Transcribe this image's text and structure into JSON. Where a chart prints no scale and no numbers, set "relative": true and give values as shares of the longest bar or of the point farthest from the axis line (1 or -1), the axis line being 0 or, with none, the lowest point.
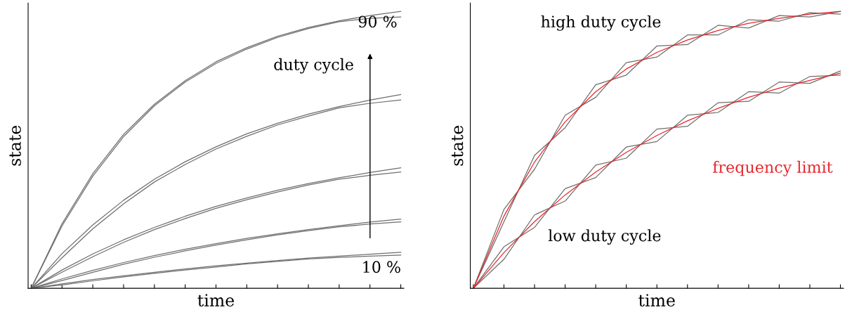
{
  "chart_data": [
    {
      "type": "line",
      "relative": true,
      "xlabel": "time",
      "ylabel": "state",
      "annotations": [
        "90 %",
        "duty cycle",
        "10 %"
      ],
      "categories": [
        null,
        null,
        null,
        null,
        null,
        null,
        null,
        null,
        null,
        null,
        null,
        null,
        null
      ],
      "series": [
        {
          "color": "#6e6e6e",
          "values": [
            0,
            0.233,
            0.414,
            0.556,
            0.665,
            0.75,
            0.818,
            0.869,
            0.91,
            0.942,
            0.966,
            0.985,
            1
          ]
        },
        {
          "color": "#6e6e6e",
          "values": [
            0,
            0.225,
            0.405,
            0.548,
            0.659,
            0.745,
            0.812,
            0.864,
            0.906,
            0.938,
            0.963,
            0.975,
            0.98
          ]
        },
        {
          "color": "#6e6e6e",
          "values": [
            0,
            0.125,
            0.229,
            0.318,
            0.394,
            0.457,
            0.511,
            0.558,
            0.596,
            0.629,
            0.656,
            0.68,
            0.7
          ]
        },
        {
          "color": "#6e6e6e",
          "values": [
            0,
            0.11,
            0.215,
            0.305,
            0.384,
            0.447,
            0.503,
            0.549,
            0.59,
            0.622,
            0.652,
            0.668,
            0.68
          ]
        },
        {
          "color": "#6e6e6e",
          "values": [
            0,
            0.066,
            0.124,
            0.175,
            0.22,
            0.26,
            0.296,
            0.326,
            0.354,
            0.378,
            0.399,
            0.418,
            0.435
          ]
        },
        {
          "color": "#6e6e6e",
          "values": [
            0,
            0.058,
            0.114,
            0.166,
            0.212,
            0.252,
            0.289,
            0.32,
            0.348,
            0.373,
            0.394,
            0.408,
            0.42
          ]
        },
        {
          "color": "#6e6e6e",
          "values": [
            0,
            0.034,
            0.065,
            0.093,
            0.118,
            0.141,
            0.161,
            0.18,
            0.197,
            0.212,
            0.226,
            0.239,
            0.25
          ]
        },
        {
          "color": "#6e6e6e",
          "values": [
            0,
            0.028,
            0.058,
            0.087,
            0.112,
            0.135,
            0.156,
            0.175,
            0.193,
            0.208,
            0.222,
            0.232,
            0.24
          ]
        },
        {
          "color": "#6e6e6e",
          "values": [
            0,
            0.016,
            0.032,
            0.045,
            0.058,
            0.07,
            0.081,
            0.091,
            0.1,
            0.109,
            0.116,
            0.123,
            0.13
          ]
        },
        {
          "color": "#6e6e6e",
          "values": [
            0,
            0.012,
            0.027,
            0.041,
            0.054,
            0.066,
            0.077,
            0.088,
            0.097,
            0.106,
            0.112,
            0.116,
            0.12
          ]
        }
      ]
    },
    {
      "type": "line",
      "relative": true,
      "xlabel": "time",
      "ylabel": "state",
      "annotations": [
        "high duty cycle",
        "frequency limit",
        "low duty cycle"
      ],
      "categories": [
        null,
        null,
        null,
        null,
        null,
        null,
        null,
        null,
        null,
        null,
        null,
        null,
        null
      ],
      "series": [
        {
          "color": "#6e6e6e",
          "values": [
            0,
            0.24,
            0.48,
            0.58,
            0.735,
            0.77,
            0.875,
            0.88,
            0.95,
            0.94,
            0.985,
            0.98,
            1
          ]
        },
        {
          "color": "#6e6e6e",
          "values": [
            0,
            0.285,
            0.43,
            0.625,
            0.69,
            0.815,
            0.835,
            0.915,
            0.915,
            0.97,
            0.965,
            0.995,
            0.99
          ]
        },
        {
          "color": "#6e6e6e",
          "values": [
            0,
            0.105,
            0.265,
            0.315,
            0.445,
            0.47,
            0.575,
            0.585,
            0.67,
            0.675,
            0.745,
            0.74,
            0.785
          ]
        },
        {
          "color": "#6e6e6e",
          "values": [
            0,
            0.15,
            0.22,
            0.36,
            0.4,
            0.51,
            0.53,
            0.625,
            0.635,
            0.71,
            0.705,
            0.765,
            0.77
          ]
        },
        {
          "color": "#e8262a",
          "values": [
            0,
            0.261,
            0.456,
            0.601,
            0.71,
            0.792,
            0.852,
            0.897,
            0.931,
            0.957,
            0.975,
            0.99,
            1
          ]
        },
        {
          "color": "#e8262a",
          "values": [
            0,
            0.129,
            0.241,
            0.337,
            0.42,
            0.491,
            0.552,
            0.605,
            0.65,
            0.69,
            0.723,
            0.751,
            0.777
          ]
        }
      ]
    }
  ]
}
